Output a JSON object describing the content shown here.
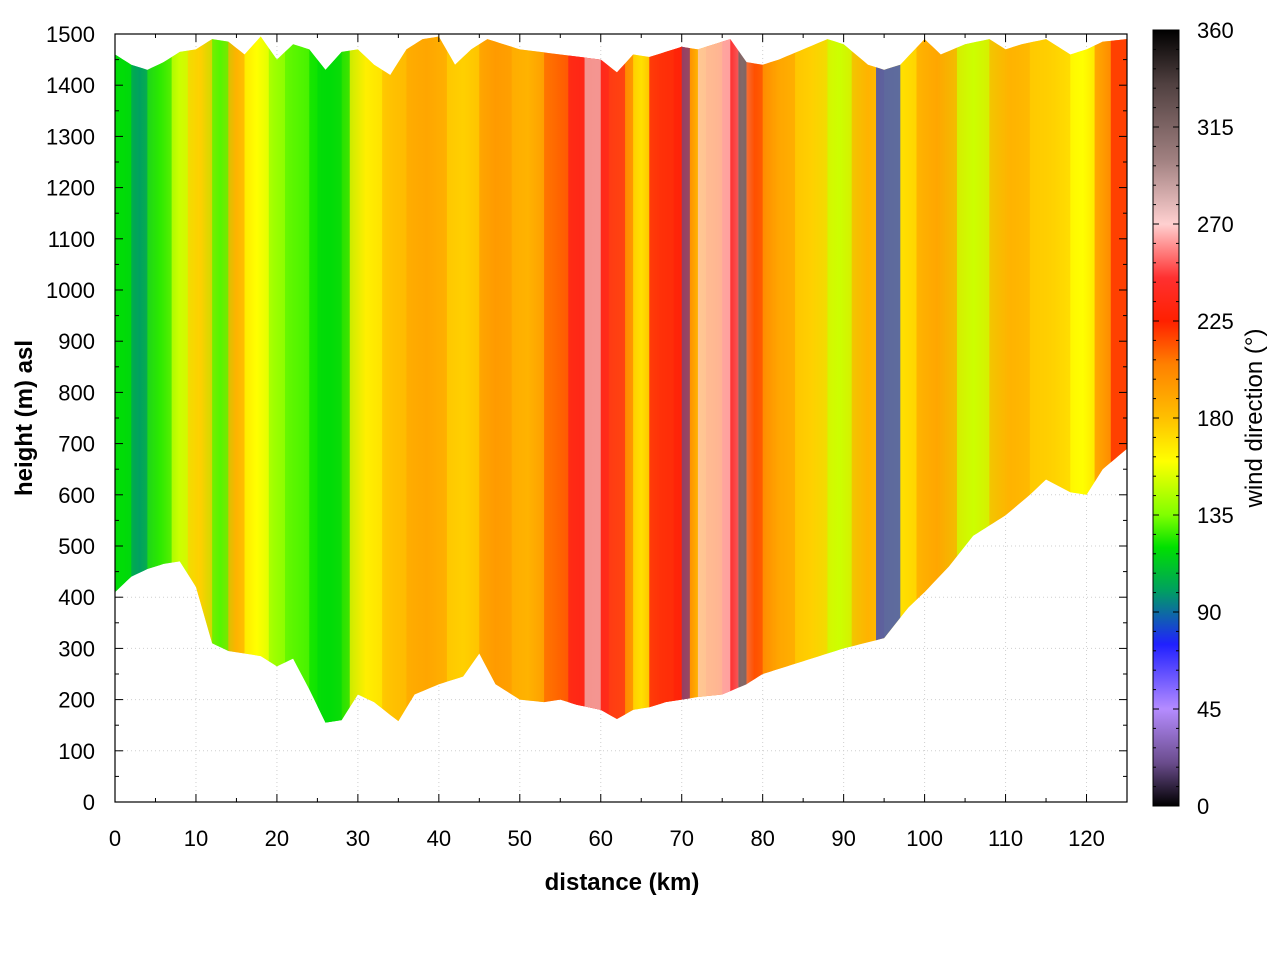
{
  "chart_data": {
    "type": "heatmap",
    "title": "",
    "xlabel": "distance (km)",
    "ylabel": "height (m) asl",
    "colorbar_label": "wind direction (°)",
    "xlim": [
      0,
      125
    ],
    "ylim": [
      0,
      1500
    ],
    "clim": [
      0,
      360
    ],
    "xticks": [
      0,
      10,
      20,
      30,
      40,
      50,
      60,
      70,
      80,
      90,
      100,
      110,
      120
    ],
    "yticks": [
      0,
      100,
      200,
      300,
      400,
      500,
      600,
      700,
      800,
      900,
      1000,
      1100,
      1200,
      1300,
      1400,
      1500
    ],
    "cticks": [
      0,
      45,
      90,
      135,
      180,
      225,
      270,
      315,
      360
    ],
    "grid": true,
    "colorscale": [
      {
        "value": 0,
        "color": "#000000"
      },
      {
        "value": 20,
        "color": "#6a4c8c"
      },
      {
        "value": 45,
        "color": "#b58cff"
      },
      {
        "value": 75,
        "color": "#2020ff"
      },
      {
        "value": 100,
        "color": "#00a060"
      },
      {
        "value": 120,
        "color": "#00e000"
      },
      {
        "value": 135,
        "color": "#80ff00"
      },
      {
        "value": 160,
        "color": "#ffff00"
      },
      {
        "value": 180,
        "color": "#ffc000"
      },
      {
        "value": 205,
        "color": "#ff8000"
      },
      {
        "value": 225,
        "color": "#ff2000"
      },
      {
        "value": 245,
        "color": "#ff3030"
      },
      {
        "value": 270,
        "color": "#ffd0d0"
      },
      {
        "value": 300,
        "color": "#a08080"
      },
      {
        "value": 335,
        "color": "#504040"
      },
      {
        "value": 360,
        "color": "#000000"
      }
    ],
    "terrain_height": {
      "distance": [
        0,
        2,
        4,
        6,
        8,
        10,
        12,
        14,
        16,
        18,
        20,
        22,
        24,
        26,
        28,
        30,
        32,
        34,
        35,
        37,
        40,
        43,
        45,
        47,
        50,
        53,
        55,
        57,
        60,
        62,
        64,
        66,
        68,
        70,
        72,
        75,
        78,
        80,
        82,
        85,
        88,
        90,
        95,
        98,
        100,
        103,
        106,
        110,
        113,
        115,
        118,
        120,
        122,
        125
      ],
      "height": [
        410,
        440,
        455,
        465,
        470,
        420,
        310,
        295,
        290,
        285,
        265,
        280,
        220,
        155,
        160,
        210,
        195,
        170,
        158,
        210,
        230,
        245,
        290,
        230,
        200,
        195,
        200,
        190,
        180,
        162,
        180,
        185,
        195,
        200,
        205,
        210,
        230,
        250,
        260,
        275,
        290,
        300,
        320,
        380,
        410,
        460,
        520,
        560,
        600,
        630,
        605,
        600,
        650,
        690
      ]
    },
    "top_height": {
      "distance": [
        0,
        2,
        4,
        6,
        8,
        10,
        12,
        14,
        16,
        18,
        20,
        22,
        24,
        26,
        28,
        30,
        32,
        34,
        36,
        38,
        40,
        42,
        44,
        46,
        48,
        50,
        55,
        60,
        62,
        64,
        66,
        68,
        70,
        72,
        74,
        76,
        78,
        80,
        82,
        85,
        88,
        90,
        93,
        95,
        97,
        100,
        102,
        105,
        108,
        110,
        112,
        115,
        118,
        120,
        122,
        125
      ],
      "height": [
        1460,
        1440,
        1430,
        1445,
        1465,
        1470,
        1490,
        1485,
        1460,
        1495,
        1450,
        1480,
        1470,
        1430,
        1465,
        1470,
        1440,
        1420,
        1470,
        1490,
        1495,
        1440,
        1470,
        1490,
        1480,
        1470,
        1460,
        1450,
        1425,
        1460,
        1455,
        1465,
        1475,
        1470,
        1480,
        1490,
        1445,
        1440,
        1450,
        1470,
        1490,
        1480,
        1440,
        1430,
        1440,
        1490,
        1460,
        1480,
        1490,
        1470,
        1480,
        1490,
        1460,
        1470,
        1485,
        1490
      ]
    },
    "profile_bands": [
      {
        "from_km": 0,
        "to_km": 2,
        "direction_deg": 120
      },
      {
        "from_km": 2,
        "to_km": 4,
        "direction_deg": 100
      },
      {
        "from_km": 4,
        "to_km": 7,
        "direction_deg": 125
      },
      {
        "from_km": 7,
        "to_km": 9,
        "direction_deg": 150
      },
      {
        "from_km": 9,
        "to_km": 12,
        "direction_deg": 175
      },
      {
        "from_km": 12,
        "to_km": 14,
        "direction_deg": 130
      },
      {
        "from_km": 14,
        "to_km": 16,
        "direction_deg": 185
      },
      {
        "from_km": 16,
        "to_km": 19,
        "direction_deg": 160
      },
      {
        "from_km": 19,
        "to_km": 21,
        "direction_deg": 140
      },
      {
        "from_km": 21,
        "to_km": 24,
        "direction_deg": 130
      },
      {
        "from_km": 24,
        "to_km": 29,
        "direction_deg": 120
      },
      {
        "from_km": 29,
        "to_km": 33,
        "direction_deg": 165
      },
      {
        "from_km": 33,
        "to_km": 36,
        "direction_deg": 180
      },
      {
        "from_km": 36,
        "to_km": 41,
        "direction_deg": 190
      },
      {
        "from_km": 41,
        "to_km": 45,
        "direction_deg": 175
      },
      {
        "from_km": 45,
        "to_km": 49,
        "direction_deg": 195
      },
      {
        "from_km": 49,
        "to_km": 53,
        "direction_deg": 185
      },
      {
        "from_km": 53,
        "to_km": 56,
        "direction_deg": 210
      },
      {
        "from_km": 56,
        "to_km": 59,
        "direction_deg": 232
      },
      {
        "from_km": 59,
        "to_km": 61,
        "direction_deg": 240
      },
      {
        "from_km": 61,
        "to_km": 64,
        "direction_deg": 205
      },
      {
        "from_km": 64,
        "to_km": 66,
        "direction_deg": 170
      },
      {
        "from_km": 66,
        "to_km": 69,
        "direction_deg": 215
      },
      {
        "from_km": 69,
        "to_km": 71,
        "direction_deg": 225
      },
      {
        "from_km": 71,
        "to_km": 73,
        "direction_deg": 185
      },
      {
        "from_km": 73,
        "to_km": 75,
        "direction_deg": 205
      },
      {
        "from_km": 75,
        "to_km": 77,
        "direction_deg": 245
      },
      {
        "from_km": 77,
        "to_km": 78,
        "direction_deg": 280
      },
      {
        "from_km": 78,
        "to_km": 80,
        "direction_deg": 215
      },
      {
        "from_km": 80,
        "to_km": 84,
        "direction_deg": 190
      },
      {
        "from_km": 84,
        "to_km": 88,
        "direction_deg": 175
      },
      {
        "from_km": 88,
        "to_km": 91,
        "direction_deg": 150
      },
      {
        "from_km": 91,
        "to_km": 95,
        "direction_deg": 185
      },
      {
        "from_km": 95,
        "to_km": 99,
        "direction_deg": 170
      },
      {
        "from_km": 99,
        "to_km": 104,
        "direction_deg": 190
      },
      {
        "from_km": 104,
        "to_km": 108,
        "direction_deg": 150
      },
      {
        "from_km": 108,
        "to_km": 113,
        "direction_deg": 185
      },
      {
        "from_km": 113,
        "to_km": 118,
        "direction_deg": 175
      },
      {
        "from_km": 118,
        "to_km": 121,
        "direction_deg": 160
      },
      {
        "from_km": 121,
        "to_km": 125,
        "direction_deg": 200
      }
    ],
    "features": [
      {
        "name": "red-band",
        "from_km": 56,
        "to_km": 63,
        "direction_deg": 235
      },
      {
        "name": "red-band",
        "from_km": 66,
        "to_km": 70,
        "direction_deg": 230
      },
      {
        "name": "light-band",
        "from_km": 58,
        "to_km": 60,
        "direction_deg": 275
      },
      {
        "name": "light-band",
        "from_km": 72,
        "to_km": 76,
        "direction_deg": 270
      },
      {
        "name": "dark-band",
        "from_km": 77,
        "to_km": 78,
        "direction_deg": 330
      },
      {
        "name": "green-band",
        "from_km": 25,
        "to_km": 28,
        "direction_deg": 118
      },
      {
        "name": "green-band",
        "from_km": 0,
        "to_km": 2,
        "direction_deg": 118
      },
      {
        "name": "blue-patch",
        "from_km": 94,
        "to_km": 97,
        "direction_deg": 80
      },
      {
        "name": "dark-patch",
        "from_km": 70,
        "to_km": 71,
        "direction_deg": 20
      },
      {
        "name": "red-band",
        "from_km": 123,
        "to_km": 125,
        "direction_deg": 225
      }
    ]
  }
}
